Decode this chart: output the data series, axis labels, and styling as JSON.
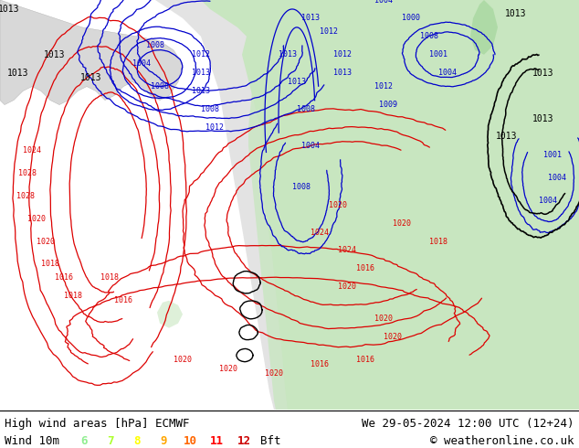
{
  "title_left": "High wind areas [hPa] ECMWF",
  "title_right": "We 29-05-2024 12:00 UTC (12+24)",
  "subtitle_left": "Wind 10m",
  "subtitle_right": "© weatheronline.co.uk",
  "wind_labels": [
    "6",
    "7",
    "8",
    "9",
    "10",
    "11",
    "12",
    "Bft"
  ],
  "wind_colors": [
    "#90ee90",
    "#adff2f",
    "#ffff00",
    "#ffa500",
    "#ff6600",
    "#ff0000",
    "#cc0000",
    "#000000"
  ],
  "background_color": "#ffffff",
  "map_bg": "#f0eeee",
  "land_green": "#c8e6c0",
  "land_green2": "#a8d8a0",
  "font_size_title": 9,
  "font_size_sub": 9,
  "figsize": [
    6.34,
    4.9
  ],
  "dpi": 100
}
